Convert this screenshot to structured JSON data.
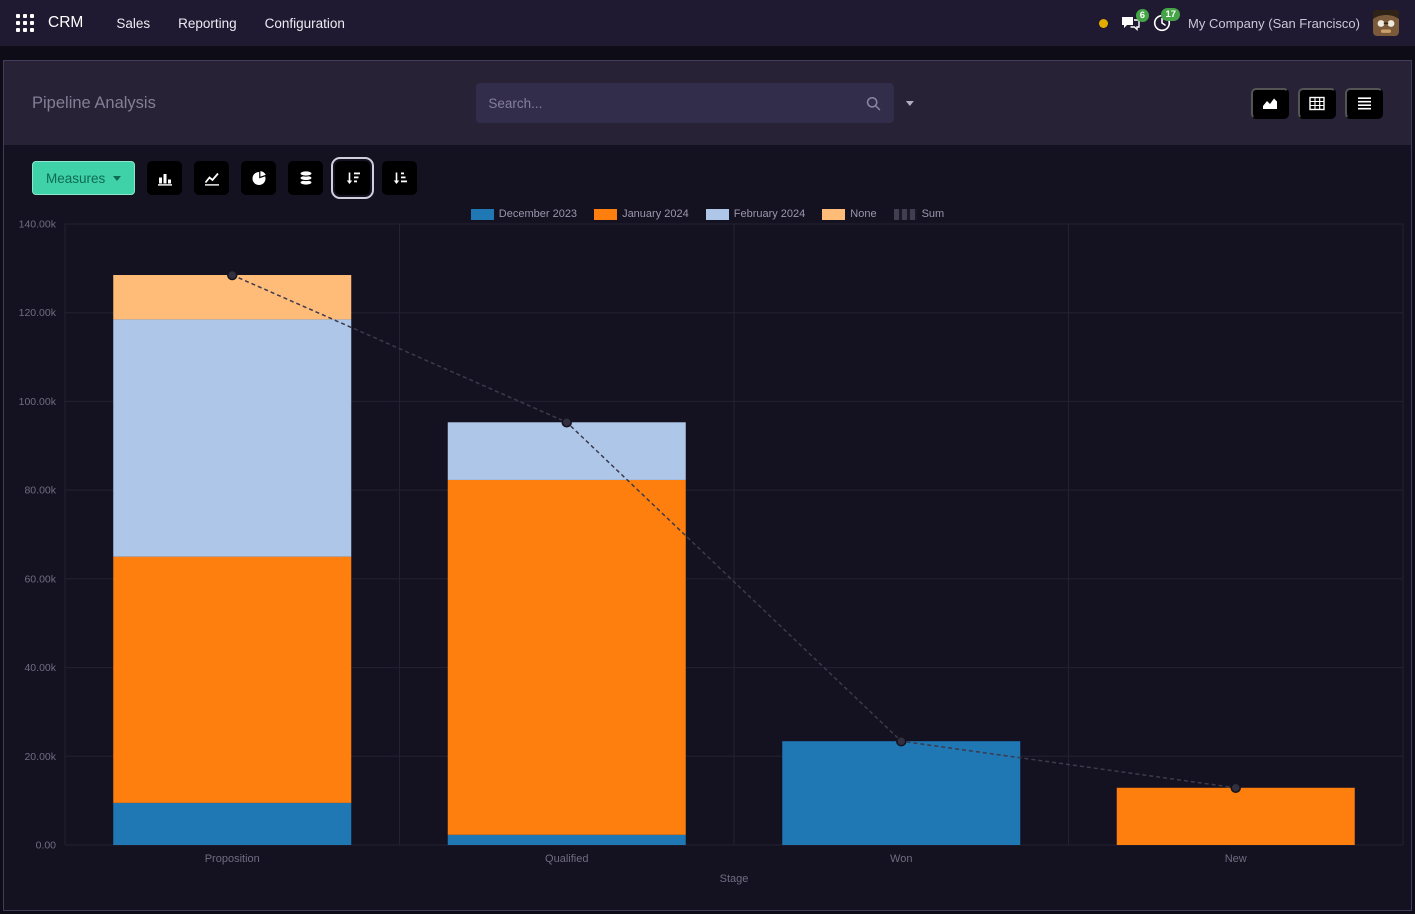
{
  "navbar": {
    "app_name": "CRM",
    "menus": [
      "Sales",
      "Reporting",
      "Configuration"
    ],
    "systray": {
      "messages_badge": "6",
      "activities_badge": "17",
      "company": "My Company (San Francisco)"
    }
  },
  "control_panel": {
    "breadcrumb": "Pipeline Analysis",
    "search_placeholder": "Search..."
  },
  "toolbar": {
    "measures_label": "Measures",
    "active_button": "sort-descending"
  },
  "colors": {
    "accent_teal": "#3fd1a7",
    "badge_green": "#45a546",
    "activity_yellow": "#e2ac00",
    "grid": "#242132",
    "axis_text": "#716c82",
    "sum_line": "#3c3a4c"
  },
  "chart_data": {
    "type": "bar",
    "stacked": true,
    "title": "Pipeline Analysis",
    "xlabel": "Stage",
    "ylabel": "",
    "ylim": [
      0,
      140000
    ],
    "ytick_step": 20000,
    "ytick_labels": [
      "0.00",
      "20.00k",
      "40.00k",
      "60.00k",
      "80.00k",
      "100.00k",
      "120.00k",
      "140.00k"
    ],
    "categories": [
      "Proposition",
      "Qualified",
      "Won",
      "New"
    ],
    "series": [
      {
        "name": "December 2023",
        "color": "#1f77b4",
        "values": [
          9500,
          2300,
          23400,
          0
        ]
      },
      {
        "name": "January 2024",
        "color": "#ff7f0e",
        "values": [
          55500,
          80000,
          0,
          12900
        ]
      },
      {
        "name": "February 2024",
        "color": "#aec7e8",
        "values": [
          53500,
          13000,
          0,
          0
        ]
      },
      {
        "name": "None",
        "color": "#ffbb78",
        "values": [
          10000,
          0,
          0,
          0
        ]
      }
    ],
    "line_series": {
      "name": "Sum",
      "dashed": true,
      "values": [
        128500,
        95300,
        23400,
        12900
      ]
    },
    "legend_position": "top",
    "grid": true
  }
}
